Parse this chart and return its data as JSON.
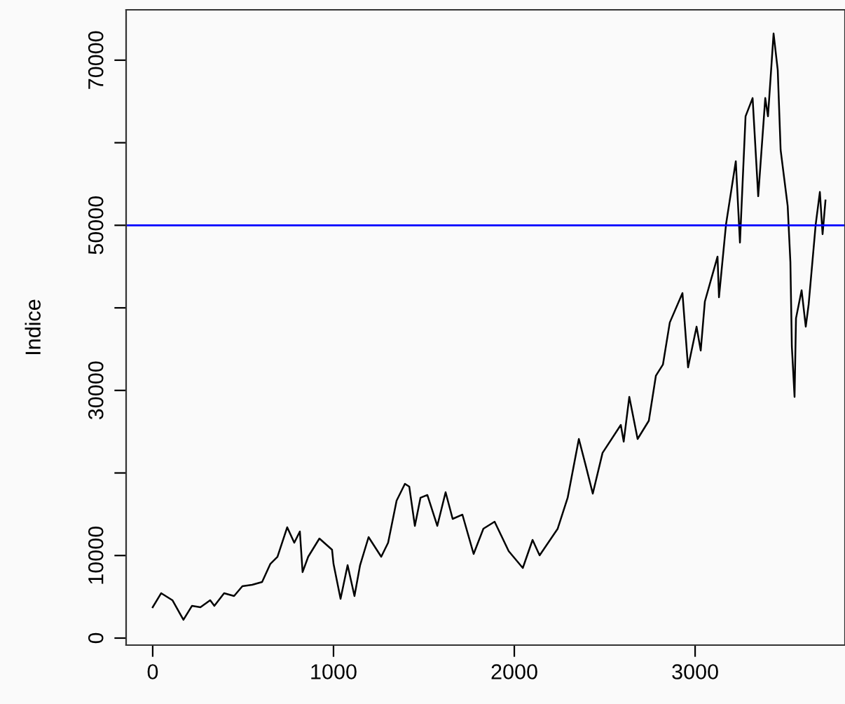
{
  "chart_data": {
    "type": "line",
    "ylabel": "Indice",
    "series": [
      {
        "color": "#000000",
        "x": [
          0,
          47,
          109,
          170,
          217,
          264,
          318,
          341,
          395,
          450,
          496,
          550,
          605,
          651,
          690,
          744,
          783,
          814,
          829,
          860,
          922,
          992,
          1000,
          1039,
          1078,
          1116,
          1147,
          1194,
          1264,
          1302,
          1349,
          1395,
          1419,
          1450,
          1481,
          1519,
          1574,
          1620,
          1659,
          1713,
          1775,
          1829,
          1891,
          1969,
          2047,
          2101,
          2140,
          2240,
          2295,
          2357,
          2395,
          2434,
          2488,
          2589,
          2605,
          2636,
          2682,
          2744,
          2783,
          2822,
          2860,
          2930,
          2961,
          3008,
          3031,
          3054,
          3124,
          3132,
          3171,
          3225,
          3248,
          3279,
          3318,
          3349,
          3388,
          3403,
          3434,
          3457,
          3473,
          3512,
          3527,
          3535,
          3550,
          3558,
          3589,
          3612,
          3628,
          3667,
          3690,
          3705,
          3721
        ],
        "values": [
          3740,
          5440,
          4590,
          2210,
          3900,
          3740,
          4590,
          3900,
          5440,
          5100,
          6290,
          6460,
          6800,
          9000,
          9850,
          13420,
          11550,
          12910,
          7990,
          9850,
          12060,
          10700,
          9000,
          4760,
          8830,
          5100,
          8830,
          12230,
          9850,
          11550,
          16650,
          18690,
          18350,
          13590,
          16990,
          17330,
          13590,
          17670,
          14440,
          14950,
          10190,
          13250,
          14100,
          10530,
          8490,
          11890,
          10020,
          13250,
          16990,
          24120,
          20900,
          17500,
          22430,
          25820,
          23790,
          29220,
          24120,
          26330,
          31770,
          33130,
          38230,
          41790,
          32790,
          37720,
          34830,
          40770,
          46210,
          41280,
          50120,
          57760,
          47910,
          63200,
          65410,
          53520,
          65410,
          63200,
          73230,
          68810,
          59120,
          52330,
          45530,
          35340,
          29220,
          38740,
          42130,
          37720,
          40430,
          50120,
          54030,
          48930,
          53010
        ]
      }
    ],
    "xlim": [
      -147,
      3829
    ],
    "ylim": [
      -850,
      76100
    ],
    "xticks": [
      0,
      1000,
      2000,
      3000
    ],
    "yticks": [
      0,
      10000,
      {
        "value": 20000,
        "label": null
      },
      30000,
      {
        "value": 40000,
        "label": null
      },
      50000,
      {
        "value": 60000,
        "label": null
      },
      70000
    ],
    "ref_lines": [
      {
        "axis": "y",
        "value": 50000,
        "color": "#0000ff"
      }
    ],
    "grid": false,
    "legend": false
  }
}
